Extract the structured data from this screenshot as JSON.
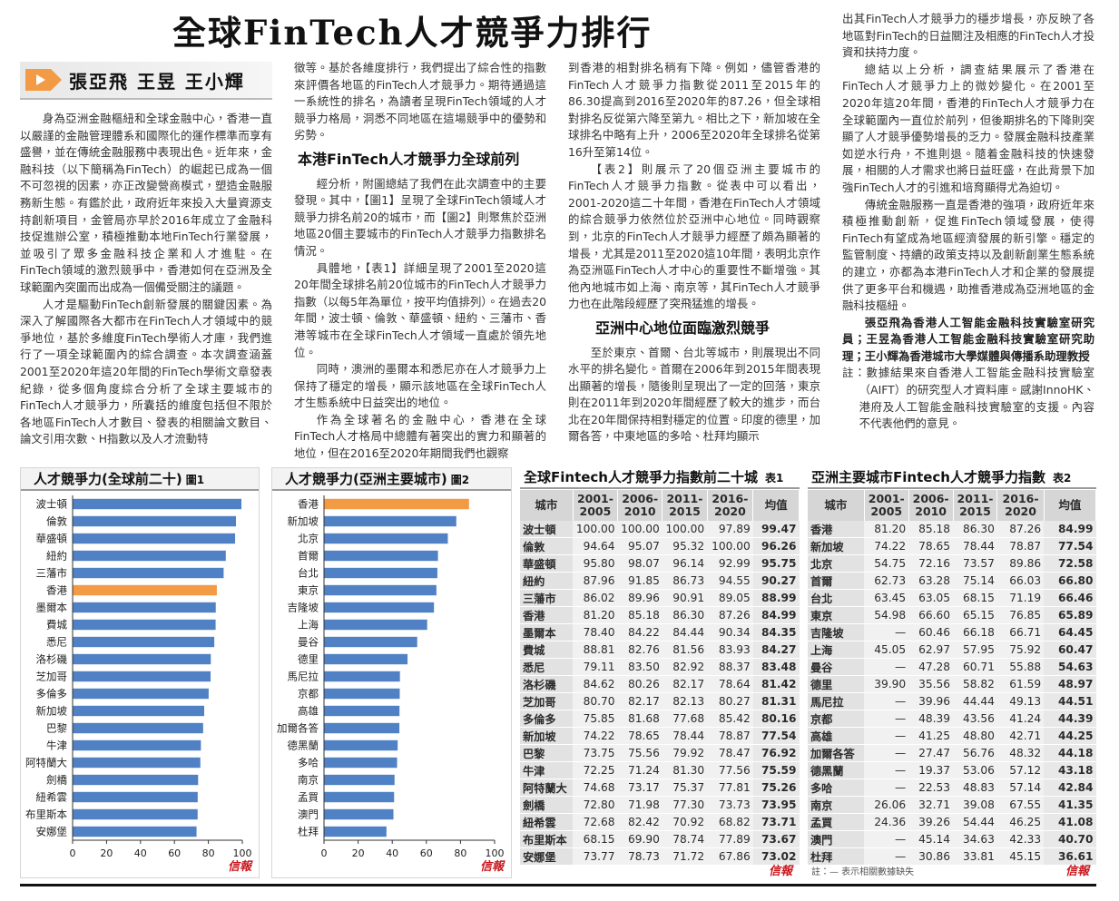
{
  "header": {
    "title": "全球FinTech人才競爭力排行",
    "authors": "張亞飛 王昱 王小輝"
  },
  "article": {
    "columns": [
      [
        "身為亞洲金融樞紐和全球金融中心，香港一直以嚴謹的金融管理體系和國際化的運作標準而享有盛譽，並在傳統金融服務中表現出色。近年來，金融科技（以下簡稱為FinTech）的崛起已成為一個不可忽視的因素，亦正改變營商模式，塑造金融服務新生態。有鑑於此，政府近年來投入大量資源支持創新項目，金管局亦早於2016年成立了金融科技促進辦公室，積極推動本地FinTech行業發展，並吸引了眾多金融科技企業和人才進駐。在FinTech領域的激烈競爭中，香港如何在亞洲及全球範圍內突圍而出成為一個備受關注的議題。",
        "人才是驅動FinTech創新發展的關鍵因素。為深入了解國際各大都市在FinTech人才領域中的競爭地位，基於多維度FinTech學術人才庫，我們進行了一項全球範圍內的綜合調查。本次調查涵蓋2001至2020年這20年間的FinTech學術文章發表紀錄，從多個角度綜合分析了全球主要城市的FinTech人才競爭力，所囊括的維度包括但不限於各地區FinTech人才數目、發表的相關論文數目、論文引用次數、H指數以及人才流動特"
      ],
      [
        "徵等。基於各維度排行，我們提出了綜合性的指數來評價各地區的FinTech人才競爭力。期待通過這一系統性的排名，為讀者呈現FinTech領域的人才競爭力格局，洞悉不同地區在這場競爭中的優勢和劣勢。",
        "本港FinTech人才競爭力全球前列",
        "經分析，附圖總結了我們在此次調查中的主要發現。其中，【圖1】呈現了全球FinTech領域人才競爭力排名前20的城市，而【圖2】則聚焦於亞洲地區20個主要城市的FinTech人才競爭力指數排名情況。",
        "具體地，【表1】詳細呈現了2001至2020這20年間全球排名前20位城市的FinTech人才競爭力指數（以每5年為單位，按平均值排列）。在過去20年間，波士頓、倫敦、華盛頓、紐約、三藩市、香港等城市在全球FinTech人才領域一直處於領先地位。",
        "同時，澳洲的墨爾本和悉尼亦在人才競爭力上保持了穩定的增長，顯示該地區在全球FinTech人才生態系統中日益突出的地位。",
        "作為全球著名的金融中心，香港在全球FinTech人才格局中總體有著突出的實力和顯著的地位，但在2016至2020年期間我們也觀察"
      ],
      [
        "到香港的相對排名稍有下降。例如，儘管香港的FinTech人才競爭力指數從2011至2015年的86.30提高到2016至2020年的87.26，但全球相對排名反從第六降至第九。相比之下，新加坡在全球排名中略有上升，2006至2020年全球排名從第16升至第14位。",
        "【表2】則展示了20個亞洲主要城市的FinTech人才競爭力指數。從表中可以看出，2001-2020這二十年間，香港在FinTech人才領域的綜合競爭力依然位於亞洲中心地位。同時觀察到，北京的FinTech人才競爭力經歷了頗為顯著的增長，尤其是2011至2020這10年間，表明北京作為亞洲區FinTech人才中心的重要性不斷增強。其他內地城市如上海、南京等，其FinTech人才競爭力也在此階段經歷了突飛猛進的增長。",
        "亞洲中心地位面臨激烈競爭",
        "至於東京、首爾、台北等城市，則展現出不同水平的排名變化。首爾在2006年到2015年間表現出顯著的增長，隨後則呈現出了一定的回落，東京則在2011年到2020年間經歷了較大的進步，而台北在20年間保持相對穩定的位置。印度的德里，加爾各答，中東地區的多哈、杜拜均顯示"
      ],
      [
        "出其FinTech人才競爭力的穩步增長，亦反映了各地區對FinTech的日益關注及相應的FinTech人才投資和扶持力度。",
        "總結以上分析，調查結果展示了香港在FinTech人才競爭力上的微妙變化。在2001至2020年這20年間，香港的FinTech人才競爭力在全球範圍內一直位於前列，但後期排名的下降則突顯了人才競爭優勢增長的乏力。發展金融科技產業如逆水行舟，不進則退。隨着金融科技的快速發展，相關的人才需求也將日益旺盛，在此背景下加強FinTech人才的引進和培育顯得尤為迫切。",
        "傳統金融服務一直是香港的強項，政府近年來積極推動創新，促進FinTech領域發展，使得FinTech有望成為地區經濟發展的新引擎。穩定的監管制度、持續的政策支持以及創新創業生態系統的建立，亦都為本港FinTech人才和企業的發展提供了更多平台和機遇，助推香港成為亞洲地區的金融科技樞紐。",
        "張亞飛為香港人工智能金融科技實驗室研究員；王昱為香港人工智能金融科技實驗室研究助理；王小輝為香港城市大學媒體與傳播系助理教授",
        "註：數據結果來自香港人工智能金融科技實驗室（AIFT）的研究型人才資料庫。感謝InnoHK、港府及人工智能金融科技實驗室的支援。內容不代表他們的意見。"
      ]
    ]
  },
  "chart_data": [
    {
      "type": "bar",
      "orientation": "horizontal",
      "title": "人才競爭力(全球前二十)",
      "label": "圖1",
      "source": "信報",
      "categories": [
        "波士頓",
        "倫敦",
        "華盛頓",
        "紐約",
        "三藩市",
        "香港",
        "墨爾本",
        "費城",
        "悉尼",
        "洛杉磯",
        "芝加哥",
        "多倫多",
        "新加坡",
        "巴黎",
        "牛津",
        "阿特蘭大",
        "劍橋",
        "紐希雲",
        "布里斯本",
        "安娜堡"
      ],
      "values": [
        99.47,
        96.26,
        95.75,
        90.27,
        88.99,
        84.99,
        84.35,
        84.27,
        83.48,
        81.42,
        81.31,
        80.16,
        77.54,
        76.92,
        75.59,
        75.26,
        73.95,
        73.71,
        73.67,
        73.02
      ],
      "colors": [
        "#4f81c4",
        "#4f81c4",
        "#4f81c4",
        "#4f81c4",
        "#4f81c4",
        "#f39a45",
        "#4f81c4",
        "#4f81c4",
        "#4f81c4",
        "#4f81c4",
        "#4f81c4",
        "#4f81c4",
        "#4f81c4",
        "#4f81c4",
        "#4f81c4",
        "#4f81c4",
        "#4f81c4",
        "#4f81c4",
        "#4f81c4",
        "#4f81c4"
      ],
      "xlim": [
        0,
        100
      ],
      "xticks": [
        0,
        20,
        40,
        60,
        80,
        100
      ]
    },
    {
      "type": "bar",
      "orientation": "horizontal",
      "title": "人才競爭力(亞洲主要城市)",
      "label": "圖2",
      "source": "信報",
      "categories": [
        "香港",
        "新加坡",
        "北京",
        "首爾",
        "台北",
        "東京",
        "吉隆坡",
        "上海",
        "曼谷",
        "德里",
        "馬尼拉",
        "京都",
        "高雄",
        "加爾各答",
        "德黑蘭",
        "多哈",
        "南京",
        "孟買",
        "澳門",
        "杜拜"
      ],
      "values": [
        84.99,
        77.54,
        72.58,
        66.8,
        66.46,
        65.89,
        64.45,
        60.47,
        54.63,
        48.97,
        44.51,
        44.39,
        44.25,
        44.18,
        43.18,
        42.84,
        41.35,
        41.08,
        40.7,
        36.61
      ],
      "colors": [
        "#f39a45",
        "#4f81c4",
        "#4f81c4",
        "#4f81c4",
        "#4f81c4",
        "#4f81c4",
        "#4f81c4",
        "#4f81c4",
        "#4f81c4",
        "#4f81c4",
        "#4f81c4",
        "#4f81c4",
        "#4f81c4",
        "#4f81c4",
        "#4f81c4",
        "#4f81c4",
        "#4f81c4",
        "#4f81c4",
        "#4f81c4",
        "#4f81c4"
      ],
      "xlim": [
        0,
        100
      ],
      "xticks": [
        0,
        20,
        40,
        60,
        80,
        100
      ]
    }
  ],
  "tables": [
    {
      "title": "全球Fintech人才競爭力指數前二十城",
      "label": "表1",
      "source": "信報",
      "columns": [
        "城市",
        "2001-2005",
        "2006-2010",
        "2011-2015",
        "2016-2020",
        "均值"
      ],
      "rows": [
        [
          "波士頓",
          "100.00",
          "100.00",
          "100.00",
          "97.89",
          "99.47"
        ],
        [
          "倫敦",
          "94.64",
          "95.07",
          "95.32",
          "100.00",
          "96.26"
        ],
        [
          "華盛頓",
          "95.80",
          "98.07",
          "96.14",
          "92.99",
          "95.75"
        ],
        [
          "紐約",
          "87.96",
          "91.85",
          "86.73",
          "94.55",
          "90.27"
        ],
        [
          "三藩市",
          "86.02",
          "89.96",
          "90.91",
          "89.05",
          "88.99"
        ],
        [
          "香港",
          "81.20",
          "85.18",
          "86.30",
          "87.26",
          "84.99"
        ],
        [
          "墨爾本",
          "78.40",
          "84.22",
          "84.44",
          "90.34",
          "84.35"
        ],
        [
          "費城",
          "88.81",
          "82.76",
          "81.56",
          "83.93",
          "84.27"
        ],
        [
          "悉尼",
          "79.11",
          "83.50",
          "82.92",
          "88.37",
          "83.48"
        ],
        [
          "洛杉磯",
          "84.62",
          "80.26",
          "82.17",
          "78.64",
          "81.42"
        ],
        [
          "芝加哥",
          "80.70",
          "82.17",
          "82.13",
          "80.27",
          "81.31"
        ],
        [
          "多倫多",
          "75.85",
          "81.68",
          "77.68",
          "85.42",
          "80.16"
        ],
        [
          "新加坡",
          "74.22",
          "78.65",
          "78.44",
          "78.87",
          "77.54"
        ],
        [
          "巴黎",
          "73.75",
          "75.56",
          "79.92",
          "78.47",
          "76.92"
        ],
        [
          "牛津",
          "72.25",
          "71.24",
          "81.30",
          "77.56",
          "75.59"
        ],
        [
          "阿特蘭大",
          "74.68",
          "73.17",
          "75.37",
          "77.81",
          "75.26"
        ],
        [
          "劍橋",
          "72.80",
          "71.98",
          "77.30",
          "73.73",
          "73.95"
        ],
        [
          "紐希雲",
          "72.68",
          "82.42",
          "70.92",
          "68.82",
          "73.71"
        ],
        [
          "布里斯本",
          "68.15",
          "69.90",
          "78.74",
          "77.89",
          "73.67"
        ],
        [
          "安娜堡",
          "73.77",
          "78.73",
          "71.72",
          "67.86",
          "73.02"
        ]
      ]
    },
    {
      "title": "亞洲主要城市Fintech人才競爭力指數",
      "label": "表2",
      "source": "信報",
      "note": "註：— 表示相關數據缺失",
      "columns": [
        "城市",
        "2001-2005",
        "2006-2010",
        "2011-2015",
        "2016-2020",
        "均值"
      ],
      "rows": [
        [
          "香港",
          "81.20",
          "85.18",
          "86.30",
          "87.26",
          "84.99"
        ],
        [
          "新加坡",
          "74.22",
          "78.65",
          "78.44",
          "78.87",
          "77.54"
        ],
        [
          "北京",
          "54.75",
          "72.16",
          "73.57",
          "89.86",
          "72.58"
        ],
        [
          "首爾",
          "62.73",
          "63.28",
          "75.14",
          "66.03",
          "66.80"
        ],
        [
          "台北",
          "63.45",
          "63.05",
          "68.15",
          "71.19",
          "66.46"
        ],
        [
          "東京",
          "54.98",
          "66.60",
          "65.15",
          "76.85",
          "65.89"
        ],
        [
          "吉隆坡",
          "—",
          "60.46",
          "66.18",
          "66.71",
          "64.45"
        ],
        [
          "上海",
          "45.05",
          "62.97",
          "57.95",
          "75.92",
          "60.47"
        ],
        [
          "曼谷",
          "—",
          "47.28",
          "60.71",
          "55.88",
          "54.63"
        ],
        [
          "德里",
          "39.90",
          "35.56",
          "58.82",
          "61.59",
          "48.97"
        ],
        [
          "馬尼拉",
          "—",
          "39.96",
          "44.44",
          "49.13",
          "44.51"
        ],
        [
          "京都",
          "—",
          "48.39",
          "43.56",
          "41.24",
          "44.39"
        ],
        [
          "高雄",
          "—",
          "41.25",
          "48.80",
          "42.71",
          "44.25"
        ],
        [
          "加爾各答",
          "—",
          "27.47",
          "56.76",
          "48.32",
          "44.18"
        ],
        [
          "德黑蘭",
          "—",
          "19.37",
          "53.06",
          "57.12",
          "43.18"
        ],
        [
          "多哈",
          "—",
          "22.53",
          "48.83",
          "57.14",
          "42.84"
        ],
        [
          "南京",
          "26.06",
          "32.71",
          "39.08",
          "67.55",
          "41.35"
        ],
        [
          "孟買",
          "24.36",
          "39.26",
          "54.44",
          "46.25",
          "41.08"
        ],
        [
          "澳門",
          "—",
          "45.14",
          "34.63",
          "42.33",
          "40.70"
        ],
        [
          "杜拜",
          "—",
          "30.86",
          "33.81",
          "45.15",
          "36.61"
        ]
      ]
    }
  ]
}
